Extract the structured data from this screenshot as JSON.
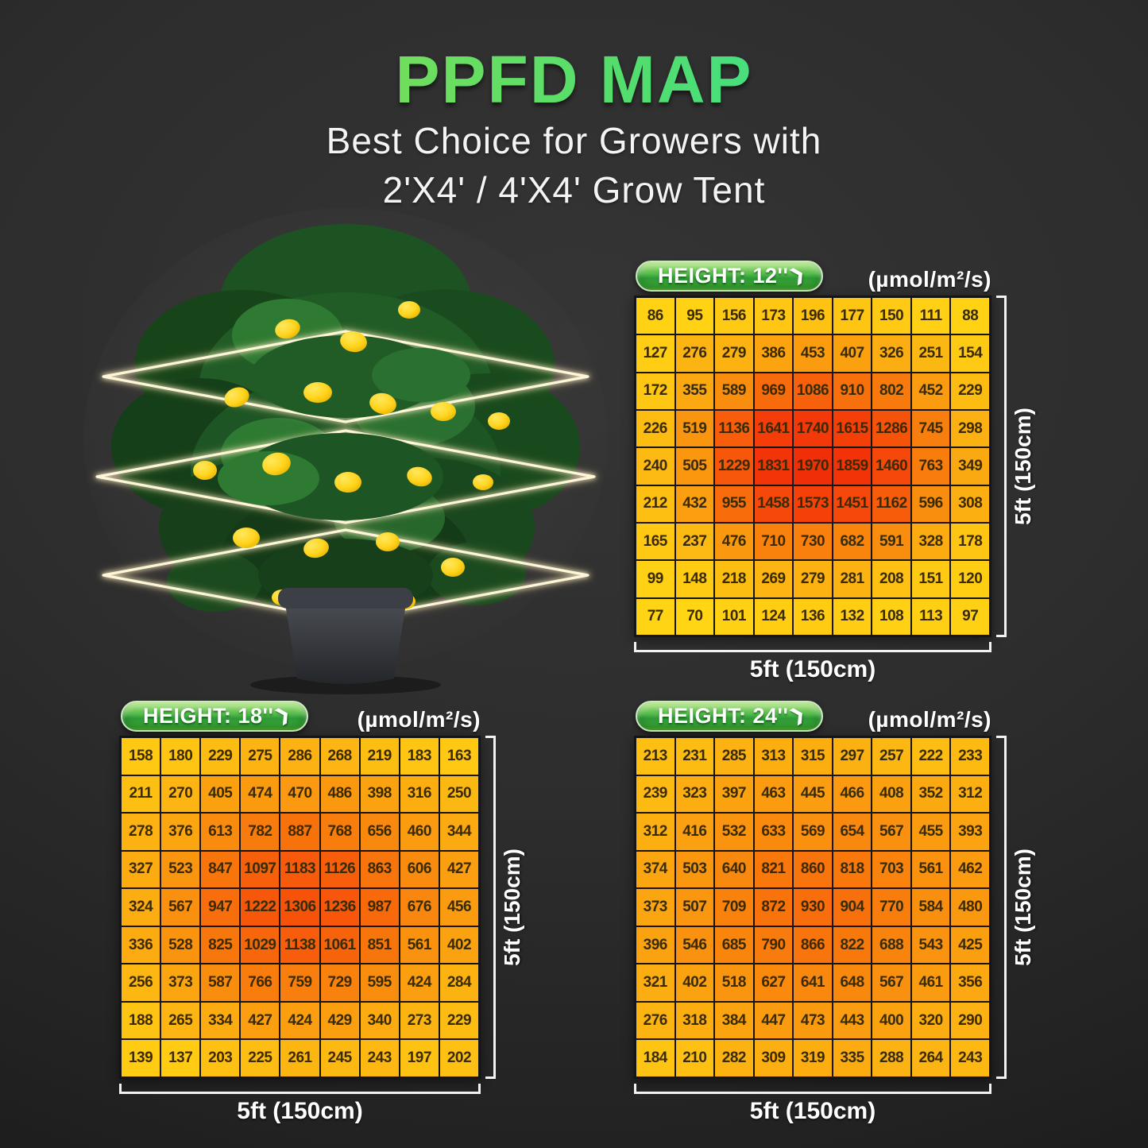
{
  "page": {
    "title": "PPFD MAP",
    "subtitle_line1": "Best Choice for Growers with",
    "subtitle_line2": "2'X4' / 4'X4' Grow Tent"
  },
  "colors": {
    "background": "#2b2b2b",
    "title_gradient_start": "#8de04c",
    "title_gradient_end": "#2fe3a3",
    "pill_green": "#3fae3f",
    "cell_text": "#3a2b04",
    "bracket": "#f2f2f2",
    "heat_scale_stops": [
      [
        70,
        "#ffd514"
      ],
      [
        160,
        "#ffc913"
      ],
      [
        260,
        "#fcb612"
      ],
      [
        420,
        "#fb9f10"
      ],
      [
        620,
        "#f98b0e"
      ],
      [
        850,
        "#f8750c"
      ],
      [
        1100,
        "#f7600b"
      ],
      [
        1400,
        "#f64b0a"
      ],
      [
        1700,
        "#f43a09"
      ],
      [
        2000,
        "#f02d07"
      ]
    ]
  },
  "icons": {
    "pill_arrow": "❯"
  },
  "chart_data": [
    {
      "type": "heatmap",
      "id": "height-12",
      "label": "HEIGHT: 12''",
      "unit": "(µmol/m²/s)",
      "xlabel": "5ft (150cm)",
      "ylabel": "5ft (150cm)",
      "rows": 9,
      "cols": 9,
      "values": [
        [
          86,
          95,
          156,
          173,
          196,
          177,
          150,
          111,
          88
        ],
        [
          127,
          276,
          279,
          386,
          453,
          407,
          326,
          251,
          154
        ],
        [
          172,
          355,
          589,
          969,
          1086,
          910,
          802,
          452,
          229
        ],
        [
          226,
          519,
          1136,
          1641,
          1740,
          1615,
          1286,
          745,
          298
        ],
        [
          240,
          505,
          1229,
          1831,
          1970,
          1859,
          1460,
          763,
          349
        ],
        [
          212,
          432,
          955,
          1458,
          1573,
          1451,
          1162,
          596,
          308
        ],
        [
          165,
          237,
          476,
          710,
          730,
          682,
          591,
          328,
          178
        ],
        [
          99,
          148,
          218,
          269,
          279,
          281,
          208,
          151,
          120
        ],
        [
          77,
          70,
          101,
          124,
          136,
          132,
          108,
          113,
          97
        ]
      ]
    },
    {
      "type": "heatmap",
      "id": "height-18",
      "label": "HEIGHT: 18''",
      "unit": "(µmol/m²/s)",
      "xlabel": "5ft (150cm)",
      "ylabel": "5ft (150cm)",
      "rows": 9,
      "cols": 9,
      "values": [
        [
          158,
          180,
          229,
          275,
          286,
          268,
          219,
          183,
          163
        ],
        [
          211,
          270,
          405,
          474,
          470,
          486,
          398,
          316,
          250
        ],
        [
          278,
          376,
          613,
          782,
          887,
          768,
          656,
          460,
          344
        ],
        [
          327,
          523,
          847,
          1097,
          1183,
          1126,
          863,
          606,
          427
        ],
        [
          324,
          567,
          947,
          1222,
          1306,
          1236,
          987,
          676,
          456
        ],
        [
          336,
          528,
          825,
          1029,
          1138,
          1061,
          851,
          561,
          402
        ],
        [
          256,
          373,
          587,
          766,
          759,
          729,
          595,
          424,
          284
        ],
        [
          188,
          265,
          334,
          427,
          424,
          429,
          340,
          273,
          229
        ],
        [
          139,
          137,
          203,
          225,
          261,
          245,
          243,
          197,
          202
        ]
      ]
    },
    {
      "type": "heatmap",
      "id": "height-24",
      "label": "HEIGHT: 24''",
      "unit": "(µmol/m²/s)",
      "xlabel": "5ft (150cm)",
      "ylabel": "5ft (150cm)",
      "rows": 9,
      "cols": 9,
      "values": [
        [
          213,
          231,
          285,
          313,
          315,
          297,
          257,
          222,
          233
        ],
        [
          239,
          323,
          397,
          463,
          445,
          466,
          408,
          352,
          312
        ],
        [
          312,
          416,
          532,
          633,
          569,
          654,
          567,
          455,
          393
        ],
        [
          374,
          503,
          640,
          821,
          860,
          818,
          703,
          561,
          462
        ],
        [
          373,
          507,
          709,
          872,
          930,
          904,
          770,
          584,
          480
        ],
        [
          396,
          546,
          685,
          790,
          866,
          822,
          688,
          543,
          425
        ],
        [
          321,
          402,
          518,
          627,
          641,
          648,
          567,
          461,
          356
        ],
        [
          276,
          318,
          384,
          447,
          473,
          443,
          400,
          320,
          290
        ],
        [
          184,
          210,
          282,
          309,
          319,
          335,
          288,
          264,
          243
        ]
      ]
    }
  ]
}
